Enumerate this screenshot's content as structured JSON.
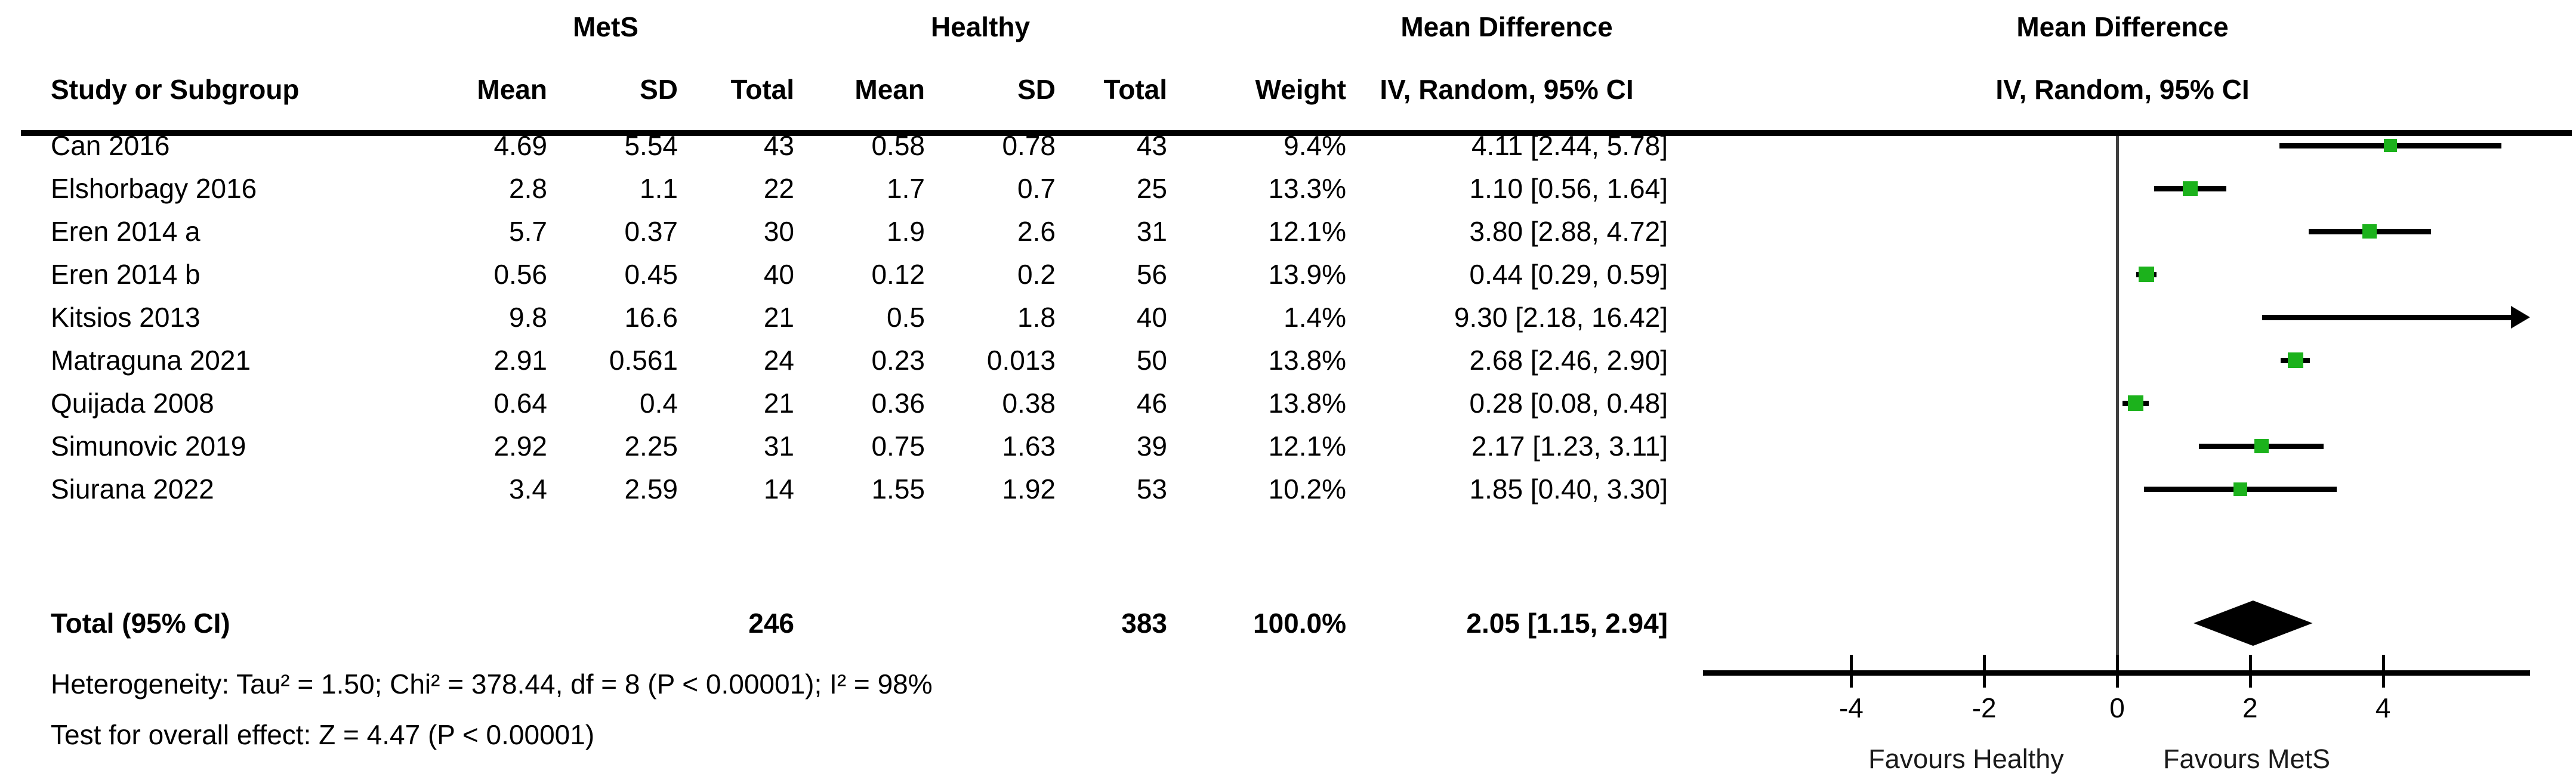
{
  "title_row": {
    "mets": "MetS",
    "healthy": "Healthy",
    "mean_difference_left": "Mean Difference",
    "mean_difference_right": "Mean Difference"
  },
  "header_row": {
    "study": "Study or Subgroup",
    "mean1": "Mean",
    "sd1": "SD",
    "total1": "Total",
    "mean2": "Mean",
    "sd2": "SD",
    "total2": "Total",
    "weight": "Weight",
    "iv_left": "IV, Random, 95% CI",
    "iv_right": "IV, Random, 95% CI"
  },
  "chart_data": {
    "type": "forest",
    "effect_measure": "Mean Difference, IV, Random, 95% CI",
    "axis": {
      "tick_labels": [
        "-4",
        "-2",
        "0",
        "2",
        "4"
      ],
      "tick_values": [
        -4,
        -2,
        0,
        2,
        4
      ],
      "min": -6.2,
      "max": 6.2,
      "favours_left": "Favours Healthy",
      "favours_right": "Favours MetS"
    },
    "studies": [
      {
        "name": "Can 2016",
        "mean1": "4.69",
        "sd1": "5.54",
        "total1": "43",
        "mean2": "0.58",
        "sd2": "0.78",
        "total2": "43",
        "weight": "9.4%",
        "weight_value": 9.4,
        "ci_text": "4.11 [2.44, 5.78]",
        "est": 4.11,
        "lo": 2.44,
        "hi": 5.78
      },
      {
        "name": "Elshorbagy 2016",
        "mean1": "2.8",
        "sd1": "1.1",
        "total1": "22",
        "mean2": "1.7",
        "sd2": "0.7",
        "total2": "25",
        "weight": "13.3%",
        "weight_value": 13.3,
        "ci_text": "1.10 [0.56, 1.64]",
        "est": 1.1,
        "lo": 0.56,
        "hi": 1.64
      },
      {
        "name": "Eren 2014 a",
        "mean1": "5.7",
        "sd1": "0.37",
        "total1": "30",
        "mean2": "1.9",
        "sd2": "2.6",
        "total2": "31",
        "weight": "12.1%",
        "weight_value": 12.1,
        "ci_text": "3.80 [2.88, 4.72]",
        "est": 3.8,
        "lo": 2.88,
        "hi": 4.72
      },
      {
        "name": "Eren 2014 b",
        "mean1": "0.56",
        "sd1": "0.45",
        "total1": "40",
        "mean2": "0.12",
        "sd2": "0.2",
        "total2": "56",
        "weight": "13.9%",
        "weight_value": 13.9,
        "ci_text": "0.44 [0.29, 0.59]",
        "est": 0.44,
        "lo": 0.29,
        "hi": 0.59
      },
      {
        "name": "Kitsios 2013",
        "mean1": "9.8",
        "sd1": "16.6",
        "total1": "21",
        "mean2": "0.5",
        "sd2": "1.8",
        "total2": "40",
        "weight": "1.4%",
        "weight_value": 1.4,
        "ci_text": "9.30 [2.18, 16.42]",
        "est": 9.3,
        "lo": 2.18,
        "hi": 16.42
      },
      {
        "name": "Matraguna 2021",
        "mean1": "2.91",
        "sd1": "0.561",
        "total1": "24",
        "mean2": "0.23",
        "sd2": "0.013",
        "total2": "50",
        "weight": "13.8%",
        "weight_value": 13.8,
        "ci_text": "2.68 [2.46, 2.90]",
        "est": 2.68,
        "lo": 2.46,
        "hi": 2.9
      },
      {
        "name": "Quijada 2008",
        "mean1": "0.64",
        "sd1": "0.4",
        "total1": "21",
        "mean2": "0.36",
        "sd2": "0.38",
        "total2": "46",
        "weight": "13.8%",
        "weight_value": 13.8,
        "ci_text": "0.28 [0.08, 0.48]",
        "est": 0.28,
        "lo": 0.08,
        "hi": 0.48
      },
      {
        "name": "Simunovic 2019",
        "mean1": "2.92",
        "sd1": "2.25",
        "total1": "31",
        "mean2": "0.75",
        "sd2": "1.63",
        "total2": "39",
        "weight": "12.1%",
        "weight_value": 12.1,
        "ci_text": "2.17 [1.23, 3.11]",
        "est": 2.17,
        "lo": 1.23,
        "hi": 3.11
      },
      {
        "name": "Siurana 2022",
        "mean1": "3.4",
        "sd1": "2.59",
        "total1": "14",
        "mean2": "1.55",
        "sd2": "1.92",
        "total2": "53",
        "weight": "10.2%",
        "weight_value": 10.2,
        "ci_text": "1.85 [0.40, 3.30]",
        "est": 1.85,
        "lo": 0.4,
        "hi": 3.3
      }
    ],
    "total": {
      "label": "Total (95% CI)",
      "total1": "246",
      "total2": "383",
      "weight": "100.0%",
      "ci_text": "2.05 [1.15, 2.94]",
      "est": 2.05,
      "lo": 1.15,
      "hi": 2.94
    }
  },
  "footnotes": {
    "heterogeneity": "Heterogeneity: Tau² = 1.50; Chi² = 378.44, df = 8 (P < 0.00001); I² = 98%",
    "overall_effect": "Test for overall effect: Z = 4.47 (P < 0.00001)"
  },
  "colors": {
    "marker": "#1cb21c",
    "ci_line": "#000000",
    "zero_line": "#3f3f3f",
    "diamond": "#000000"
  }
}
